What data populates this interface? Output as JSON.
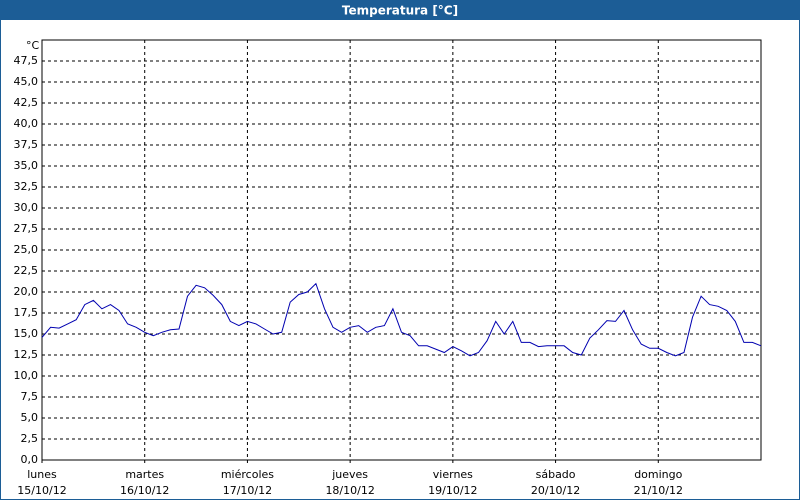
{
  "chart_data": {
    "type": "line",
    "title": "Temperatura [°C]",
    "y_unit": "°C",
    "xlim": [
      0,
      168
    ],
    "ylim": [
      0,
      50
    ],
    "grid": true,
    "xticks": [
      {
        "value": 0,
        "label": "lunes",
        "date": "15/10/12"
      },
      {
        "value": 24,
        "label": "martes",
        "date": "16/10/12"
      },
      {
        "value": 48,
        "label": "miércoles",
        "date": "17/10/12"
      },
      {
        "value": 72,
        "label": "jueves",
        "date": "18/10/12"
      },
      {
        "value": 96,
        "label": "viernes",
        "date": "19/10/12"
      },
      {
        "value": 120,
        "label": "sábado",
        "date": "20/10/12"
      },
      {
        "value": 144,
        "label": "domingo",
        "date": "21/10/12"
      }
    ],
    "yticks": [
      {
        "value": 0,
        "label": "0,0"
      },
      {
        "value": 2.5,
        "label": "2,5"
      },
      {
        "value": 5,
        "label": "5,0"
      },
      {
        "value": 7.5,
        "label": "7,5"
      },
      {
        "value": 10,
        "label": "10,0"
      },
      {
        "value": 12.5,
        "label": "12,5"
      },
      {
        "value": 15,
        "label": "15,0"
      },
      {
        "value": 17.5,
        "label": "17,5"
      },
      {
        "value": 20,
        "label": "20,0"
      },
      {
        "value": 22.5,
        "label": "22,5"
      },
      {
        "value": 25,
        "label": "25,0"
      },
      {
        "value": 27.5,
        "label": "27,5"
      },
      {
        "value": 30,
        "label": "30,0"
      },
      {
        "value": 32.5,
        "label": "32,5"
      },
      {
        "value": 35,
        "label": "35,0"
      },
      {
        "value": 37.5,
        "label": "37,5"
      },
      {
        "value": 40,
        "label": "40,0"
      },
      {
        "value": 42.5,
        "label": "42,5"
      },
      {
        "value": 45,
        "label": "45,0"
      },
      {
        "value": 47.5,
        "label": "47,5"
      }
    ],
    "color": "#0000b0",
    "x": [
      0,
      2,
      4,
      6,
      8,
      10,
      12,
      14,
      16,
      18,
      20,
      22,
      24,
      26,
      28,
      30,
      32,
      34,
      36,
      38,
      40,
      42,
      44,
      46,
      48,
      50,
      52,
      54,
      56,
      58,
      60,
      62,
      64,
      66,
      68,
      70,
      72,
      74,
      76,
      78,
      80,
      82,
      84,
      86,
      88,
      90,
      92,
      94,
      96,
      98,
      100,
      102,
      104,
      106,
      108,
      110,
      112,
      114,
      116,
      118,
      120,
      122,
      124,
      126,
      128,
      130,
      132,
      134,
      136,
      138,
      140,
      142,
      144,
      146,
      148,
      150,
      152,
      154,
      156,
      158,
      160,
      162,
      164,
      166,
      168
    ],
    "values": [
      14.6,
      15.8,
      15.7,
      16.2,
      16.7,
      18.5,
      19.0,
      18.0,
      18.5,
      17.8,
      16.2,
      15.8,
      15.2,
      14.8,
      15.2,
      15.5,
      15.6,
      19.5,
      20.8,
      20.5,
      19.6,
      18.5,
      16.5,
      16.0,
      16.5,
      16.2,
      15.6,
      15.0,
      15.2,
      18.8,
      19.7,
      20.0,
      21.0,
      18.0,
      15.8,
      15.2,
      15.8,
      16.0,
      15.2,
      15.8,
      16.0,
      18.0,
      15.2,
      14.8,
      13.6,
      13.6,
      13.2,
      12.8,
      13.5,
      13.0,
      12.4,
      12.8,
      14.2,
      16.5,
      15.0,
      16.5,
      14.0,
      14.0,
      13.5,
      13.6,
      13.6,
      13.6,
      12.8,
      12.5,
      14.5,
      15.5,
      16.6,
      16.5,
      17.8,
      15.5,
      13.8,
      13.3,
      13.3,
      12.8,
      12.4,
      12.8,
      17.0,
      19.5,
      18.5,
      18.3,
      17.8,
      16.5,
      14.0,
      14.0,
      13.6
    ]
  }
}
